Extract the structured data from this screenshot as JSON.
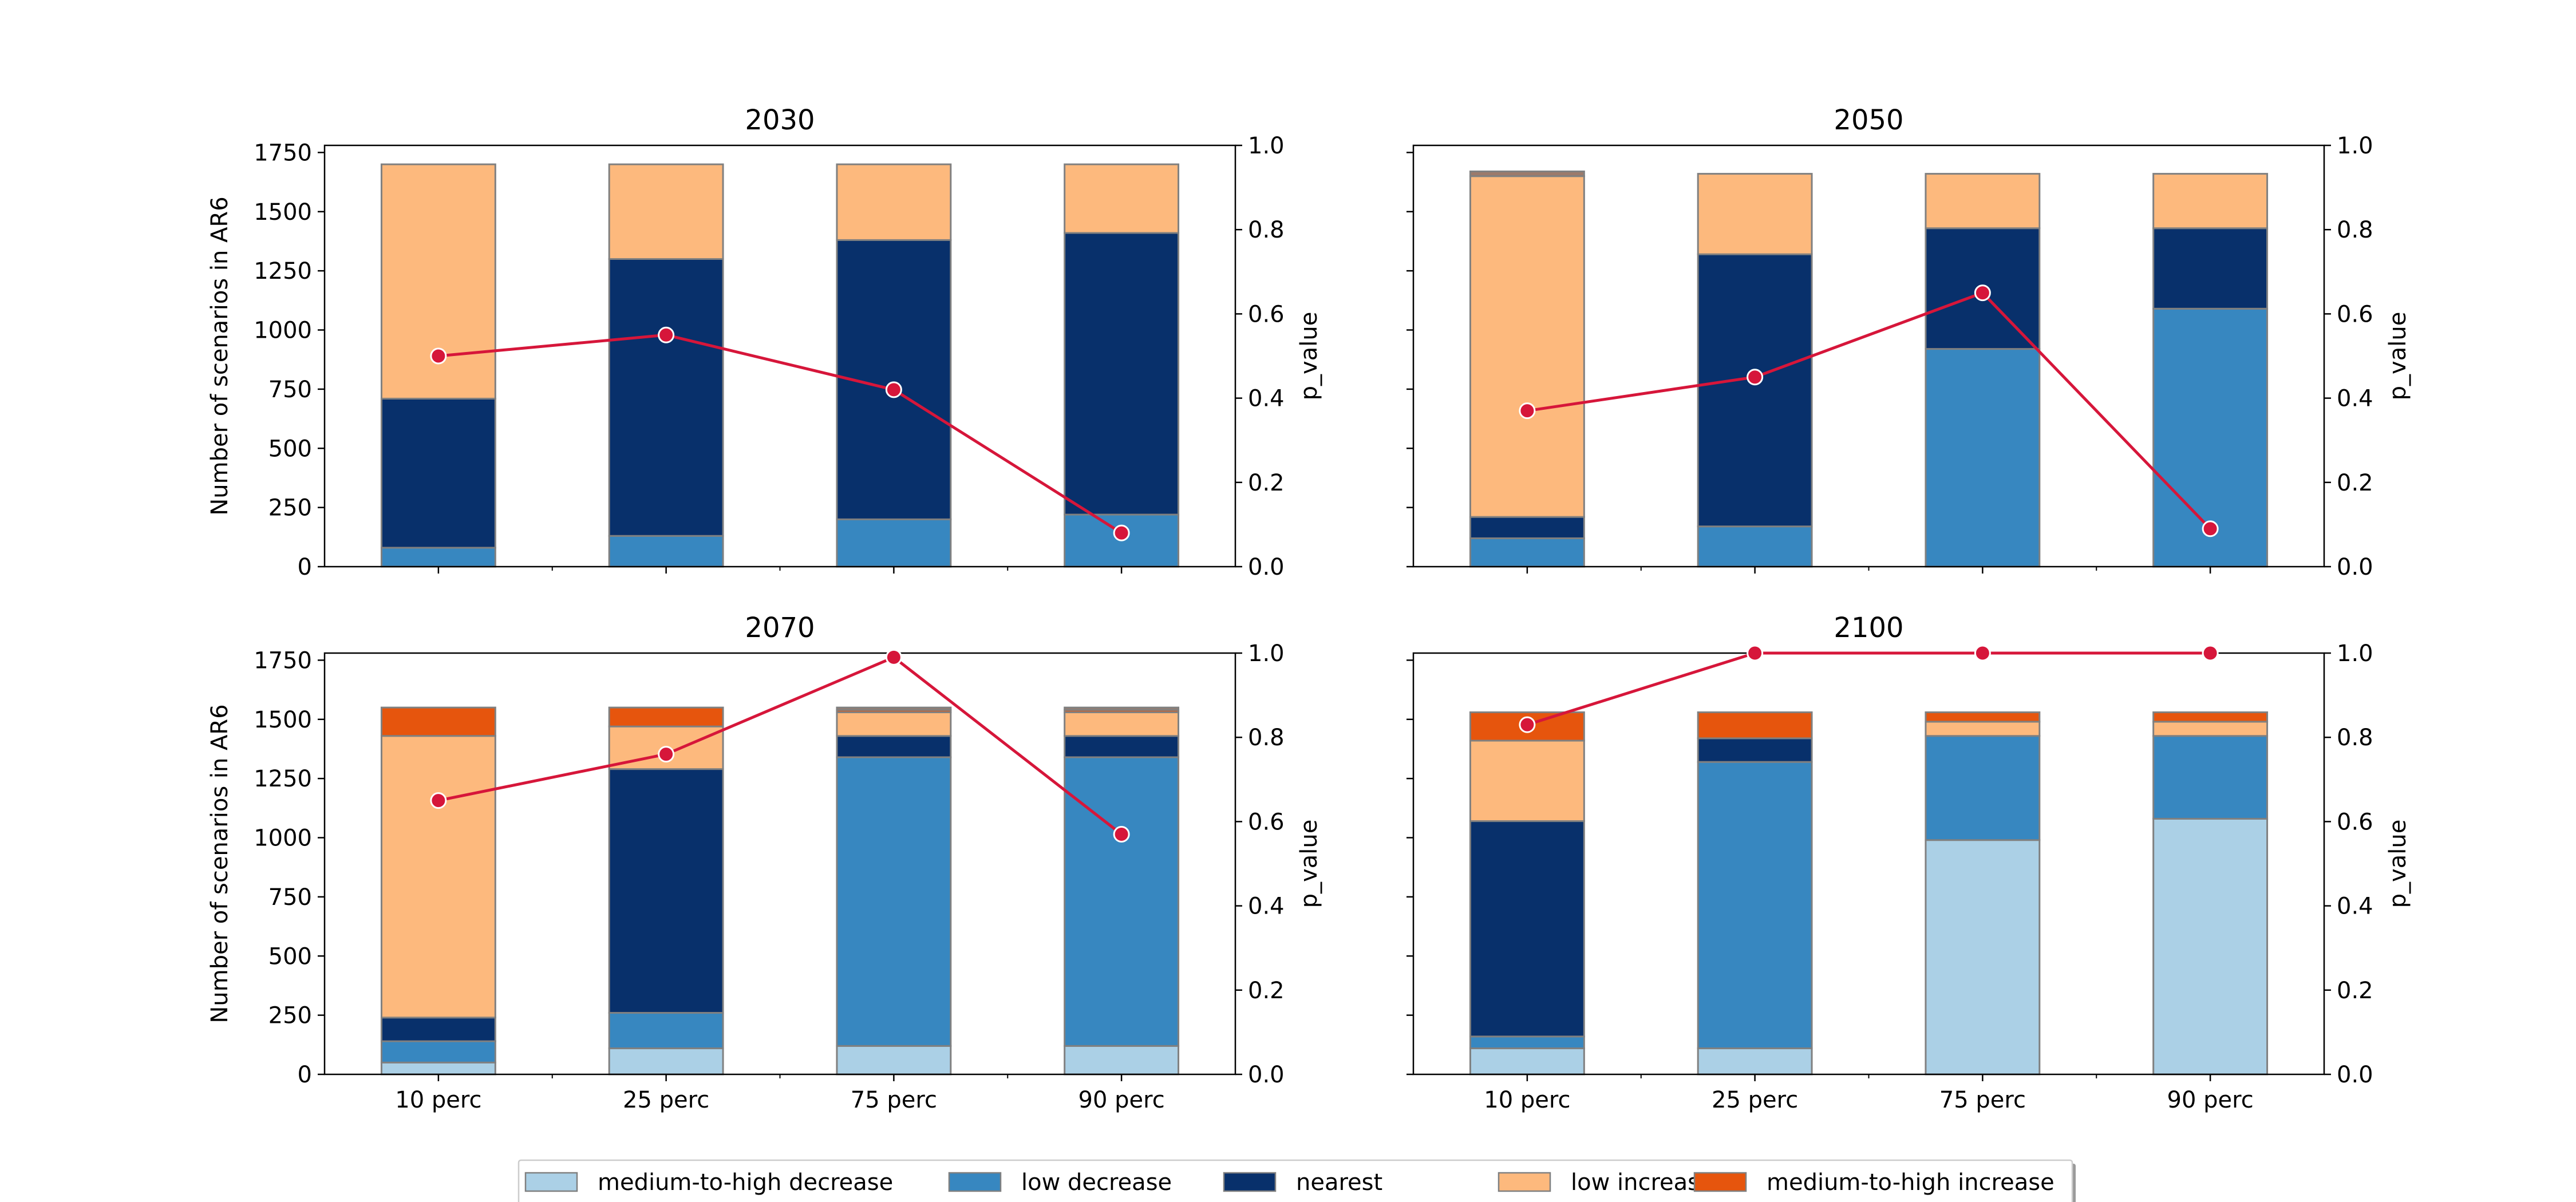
{
  "chart_data": {
    "type": "bar",
    "stacked": true,
    "categories": [
      "10 perc",
      "25 perc",
      "75 perc",
      "90 perc"
    ],
    "y_left_label": "Number of scenarios in AR6",
    "y_right_label": "p_value",
    "y_left_ticks": [
      "0",
      "250",
      "500",
      "750",
      "1000",
      "1250",
      "1500",
      "1750"
    ],
    "y_right_ticks": [
      "0.0",
      "0.2",
      "0.4",
      "0.6",
      "0.8",
      "1.0"
    ],
    "ylim_left": [
      0,
      1780
    ],
    "ylim_right": [
      0,
      1.0
    ],
    "bar_stack_order": [
      "medium-to-high decrease",
      "low decrease",
      "nearest",
      "low increase",
      "medium-to-high increase"
    ],
    "legend": {
      "position": "bottom-center",
      "entries": [
        {
          "key": "medium-to-high decrease",
          "label": "medium-to-high decrease",
          "color": "#abd0e6"
        },
        {
          "key": "low decrease",
          "label": "low decrease",
          "color": "#3787c0"
        },
        {
          "key": "nearest",
          "label": "nearest",
          "color": "#08306b"
        },
        {
          "key": "low increase",
          "label": "low increase",
          "color": "#fdb97d"
        },
        {
          "key": "medium-to-high increase",
          "label": "medium-to-high increase",
          "color": "#e6550d"
        }
      ]
    },
    "bar_edge_color": "#808080",
    "extra_segment_color": "#9c7a6b",
    "line_color": "#d6163a",
    "panels": [
      {
        "title": "2030",
        "stacks": [
          {
            "medium-to-high decrease": 0,
            "low decrease": 80,
            "nearest": 630,
            "low increase": 990,
            "medium-to-high increase": 0
          },
          {
            "medium-to-high decrease": 0,
            "low decrease": 130,
            "nearest": 1170,
            "low increase": 400,
            "medium-to-high increase": 0
          },
          {
            "medium-to-high decrease": 0,
            "low decrease": 200,
            "nearest": 1180,
            "low increase": 320,
            "medium-to-high increase": 0
          },
          {
            "medium-to-high decrease": 0,
            "low decrease": 220,
            "nearest": 1190,
            "low increase": 290,
            "medium-to-high increase": 0
          }
        ],
        "extra": [
          0,
          0,
          0,
          0
        ],
        "p_value": [
          0.5,
          0.55,
          0.42,
          0.08
        ]
      },
      {
        "title": "2050",
        "stacks": [
          {
            "medium-to-high decrease": 0,
            "low decrease": 120,
            "nearest": 90,
            "low increase": 1440,
            "medium-to-high increase": 0
          },
          {
            "medium-to-high decrease": 0,
            "low decrease": 170,
            "nearest": 1150,
            "low increase": 340,
            "medium-to-high increase": 0
          },
          {
            "medium-to-high decrease": 0,
            "low decrease": 920,
            "nearest": 510,
            "low increase": 230,
            "medium-to-high increase": 0
          },
          {
            "medium-to-high decrease": 0,
            "low decrease": 1090,
            "nearest": 340,
            "low increase": 230,
            "medium-to-high increase": 0
          }
        ],
        "extra": [
          20,
          0,
          0,
          0
        ],
        "p_value": [
          0.37,
          0.45,
          0.65,
          0.09
        ]
      },
      {
        "title": "2070",
        "stacks": [
          {
            "medium-to-high decrease": 50,
            "low decrease": 90,
            "nearest": 100,
            "low increase": 1190,
            "medium-to-high increase": 120
          },
          {
            "medium-to-high decrease": 110,
            "low decrease": 150,
            "nearest": 1030,
            "low increase": 180,
            "medium-to-high increase": 80
          },
          {
            "medium-to-high decrease": 120,
            "low decrease": 1220,
            "nearest": 90,
            "low increase": 100,
            "medium-to-high increase": 10
          },
          {
            "medium-to-high decrease": 120,
            "low decrease": 1220,
            "nearest": 90,
            "low increase": 100,
            "medium-to-high increase": 10
          }
        ],
        "extra": [
          0,
          0,
          10,
          10
        ],
        "p_value": [
          0.65,
          0.76,
          0.99,
          0.57
        ]
      },
      {
        "title": "2100",
        "stacks": [
          {
            "medium-to-high decrease": 110,
            "low decrease": 50,
            "nearest": 910,
            "low increase": 340,
            "medium-to-high increase": 120
          },
          {
            "medium-to-high decrease": 110,
            "low decrease": 1210,
            "nearest": 100,
            "low increase": 0,
            "medium-to-high increase": 110
          },
          {
            "medium-to-high decrease": 990,
            "low decrease": 440,
            "nearest": 0,
            "low increase": 60,
            "medium-to-high increase": 40
          },
          {
            "medium-to-high decrease": 1080,
            "low decrease": 350,
            "nearest": 0,
            "low increase": 60,
            "medium-to-high increase": 40
          }
        ],
        "extra": [
          0,
          0,
          0,
          0
        ],
        "p_value": [
          0.83,
          1.0,
          1.0,
          1.0
        ]
      }
    ]
  }
}
